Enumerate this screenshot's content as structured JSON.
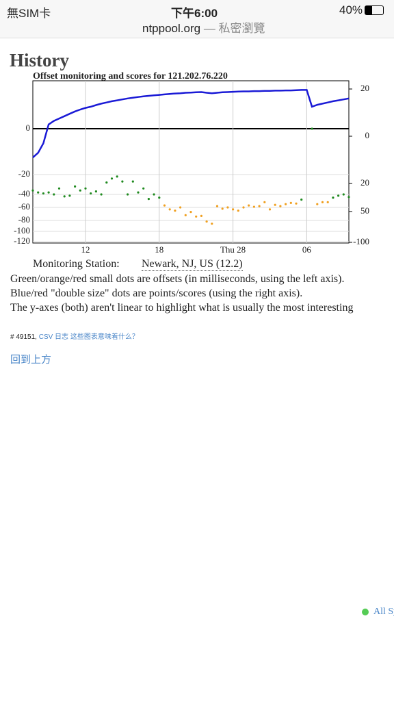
{
  "status_bar": {
    "carrier": "無SIM卡",
    "time": "下午6:00",
    "battery": "40%"
  },
  "url_bar": {
    "domain": "ntppool.org",
    "mode": "— 私密瀏覽"
  },
  "page": {
    "heading": "History",
    "chart_data": {
      "type": "scatter",
      "title": "Offset monitoring and scores for 121.202.76.220",
      "xlim": [
        0,
        60
      ],
      "xticks": [
        {
          "value": 10,
          "label": "12"
        },
        {
          "value": 24,
          "label": "18"
        },
        {
          "value": 38,
          "label": "Thu 28"
        },
        {
          "value": 52,
          "label": "06"
        }
      ],
      "yticks": [
        0,
        -20,
        -40,
        -60,
        -80,
        -100,
        -120
      ],
      "y2ticks": [
        20,
        0,
        {
          "value": -20,
          "label": "20"
        },
        {
          "value": -50,
          "label": "50"
        },
        -100
      ],
      "grid": true,
      "series": [
        {
          "name": "score",
          "type": "line",
          "axis": "y2",
          "color": "#1a1ad6",
          "values": [
            -9,
            -7,
            -3,
            5,
            6.5,
            7.5,
            8.5,
            9.5,
            10.5,
            11.3,
            12,
            12.5,
            13.2,
            13.8,
            14.3,
            14.8,
            15.2,
            15.6,
            16,
            16.3,
            16.6,
            16.9,
            17.1,
            17.3,
            17.5,
            17.7,
            17.9,
            18.1,
            18.2,
            18.4,
            18.5,
            18.6,
            18.7,
            18.4,
            18.2,
            18.4,
            18.6,
            18.7,
            18.8,
            18.9,
            19,
            19,
            19.1,
            19.1,
            19.2,
            19.2,
            19.3,
            19.3,
            19.4,
            19.4,
            19.5,
            19.6,
            19.6,
            12.5,
            13.3,
            13.8,
            14.3,
            14.8,
            15.2,
            15.6,
            16
          ]
        },
        {
          "name": "offset-ok",
          "color": "#1f8a1f",
          "values": [
            -36,
            -38,
            -39,
            -38,
            -40,
            -34,
            -43,
            -42,
            -32,
            -36,
            -34,
            -39,
            -37,
            -40,
            -28,
            -24,
            -22,
            -27,
            -40,
            -27,
            -38,
            -34,
            -47,
            -40,
            -45,
            null,
            null,
            null,
            null,
            null,
            null,
            null,
            null,
            null,
            null,
            null,
            null,
            null,
            null,
            null,
            null,
            null,
            null,
            null,
            null,
            null,
            null,
            null,
            null,
            null,
            null,
            -48,
            null,
            0,
            null,
            null,
            null,
            -45,
            -42,
            -40,
            -44
          ]
        },
        {
          "name": "offset-warn",
          "color": "#f0a020",
          "values": [
            null,
            null,
            null,
            null,
            null,
            null,
            null,
            null,
            null,
            null,
            null,
            null,
            null,
            null,
            null,
            null,
            null,
            null,
            null,
            null,
            null,
            null,
            null,
            null,
            null,
            -57,
            -63,
            -65,
            -60,
            -72,
            -67,
            -74,
            -73,
            -82,
            -86,
            -58,
            -62,
            -60,
            -63,
            -65,
            -60,
            -57,
            -59,
            -58,
            -52,
            -63,
            -56,
            -58,
            -55,
            -53,
            -54,
            null,
            null,
            null,
            -55,
            -52,
            -52,
            null,
            null,
            null,
            null
          ]
        }
      ]
    },
    "station_label": "Monitoring Station:",
    "station": "Newark, NJ, US (12.2)",
    "notes": [
      "Green/orange/red small dots are offsets (in milliseconds, using the left axis).",
      "Blue/red \"double size\" dots are points/scores (using the right axis).",
      "The y-axes (both) aren't linear to highlight what is usually the most interesting"
    ],
    "footer": {
      "id": "# 49151,",
      "csv": "CSV 日志",
      "help": "这些图表意味着什么？"
    },
    "back_to_top": "回到上方",
    "legend_item": "All Sy"
  }
}
